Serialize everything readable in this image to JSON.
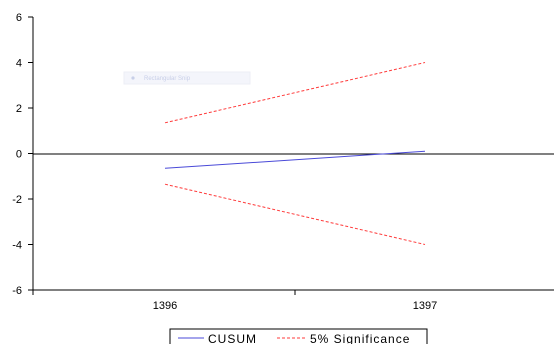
{
  "chart_data": {
    "type": "line",
    "x": [
      "1396",
      "1397"
    ],
    "ylim": [
      -6,
      6
    ],
    "yticks": [
      -6,
      -4,
      -2,
      0,
      2,
      4,
      6
    ],
    "series": [
      {
        "name": "CUSUM",
        "values": [
          -0.65,
          0.1
        ],
        "color": "#4a4ad8",
        "dash": "solid"
      },
      {
        "name": "5% Significance",
        "values": [
          1.35,
          4.0
        ],
        "color": "#ff3b3b",
        "dash": "dashed"
      },
      {
        "name": "5% Significance",
        "values": [
          -1.35,
          -4.0
        ],
        "color": "#ff3b3b",
        "dash": "dashed"
      }
    ],
    "legend": {
      "position": "bottom-center",
      "entries": [
        "CUSUM",
        "5% Significance"
      ]
    },
    "overlay_text": "Rectangular Snip"
  }
}
